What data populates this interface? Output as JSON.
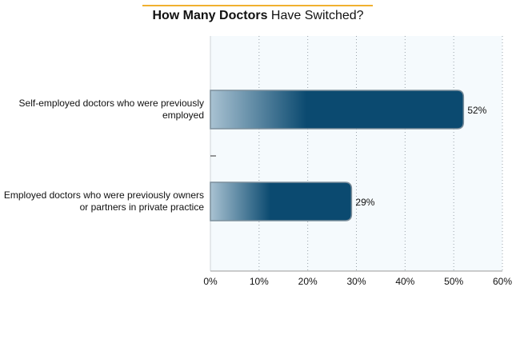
{
  "chart_data": {
    "type": "bar",
    "orientation": "horizontal",
    "title_bold": "How Many Doctors",
    "title_rest": " Have Switched?",
    "categories": [
      "Self-employed doctors who were previously employed",
      "Employed doctors who were previously owners or partners in private practice"
    ],
    "values": [
      52,
      29
    ],
    "data_labels": [
      "52%",
      "29%"
    ],
    "xlim": [
      0,
      60
    ],
    "xticks": [
      0,
      10,
      20,
      30,
      40,
      50,
      60
    ],
    "xtick_labels": [
      "0%",
      "10%",
      "20%",
      "30%",
      "40%",
      "50%",
      "60%"
    ],
    "grid": "vertical dotted",
    "colors": {
      "bar": "#0b4a70",
      "bar_light": "#a9c2d2",
      "accent": "#f0b030",
      "plot_bg": "#f5fafd"
    }
  }
}
